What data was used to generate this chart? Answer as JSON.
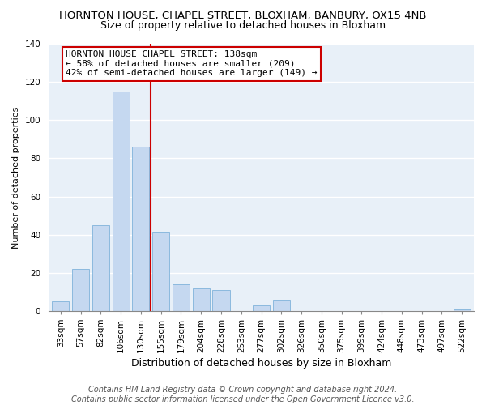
{
  "title": "HORNTON HOUSE, CHAPEL STREET, BLOXHAM, BANBURY, OX15 4NB",
  "subtitle": "Size of property relative to detached houses in Bloxham",
  "xlabel": "Distribution of detached houses by size in Bloxham",
  "ylabel": "Number of detached properties",
  "bar_labels": [
    "33sqm",
    "57sqm",
    "82sqm",
    "106sqm",
    "130sqm",
    "155sqm",
    "179sqm",
    "204sqm",
    "228sqm",
    "253sqm",
    "277sqm",
    "302sqm",
    "326sqm",
    "350sqm",
    "375sqm",
    "399sqm",
    "424sqm",
    "448sqm",
    "473sqm",
    "497sqm",
    "522sqm"
  ],
  "bar_values": [
    5,
    22,
    45,
    115,
    86,
    41,
    14,
    12,
    11,
    0,
    3,
    6,
    0,
    0,
    0,
    0,
    0,
    0,
    0,
    0,
    1
  ],
  "bar_color": "#c5d8f0",
  "bar_edge_color": "#7fb3db",
  "reference_line_index": 4,
  "reference_line_color": "#cc0000",
  "ylim": [
    0,
    140
  ],
  "yticks": [
    0,
    20,
    40,
    60,
    80,
    100,
    120,
    140
  ],
  "annotation_title": "HORNTON HOUSE CHAPEL STREET: 138sqm",
  "annotation_line1": "← 58% of detached houses are smaller (209)",
  "annotation_line2": "42% of semi-detached houses are larger (149) →",
  "annotation_box_color": "#ffffff",
  "annotation_border_color": "#cc0000",
  "footer_line1": "Contains HM Land Registry data © Crown copyright and database right 2024.",
  "footer_line2": "Contains public sector information licensed under the Open Government Licence v3.0.",
  "plot_bg_color": "#e8f0f8",
  "fig_bg_color": "#ffffff",
  "title_fontsize": 9.5,
  "subtitle_fontsize": 9,
  "xlabel_fontsize": 9,
  "ylabel_fontsize": 8,
  "tick_fontsize": 7.5,
  "annotation_fontsize": 8,
  "footer_fontsize": 7
}
